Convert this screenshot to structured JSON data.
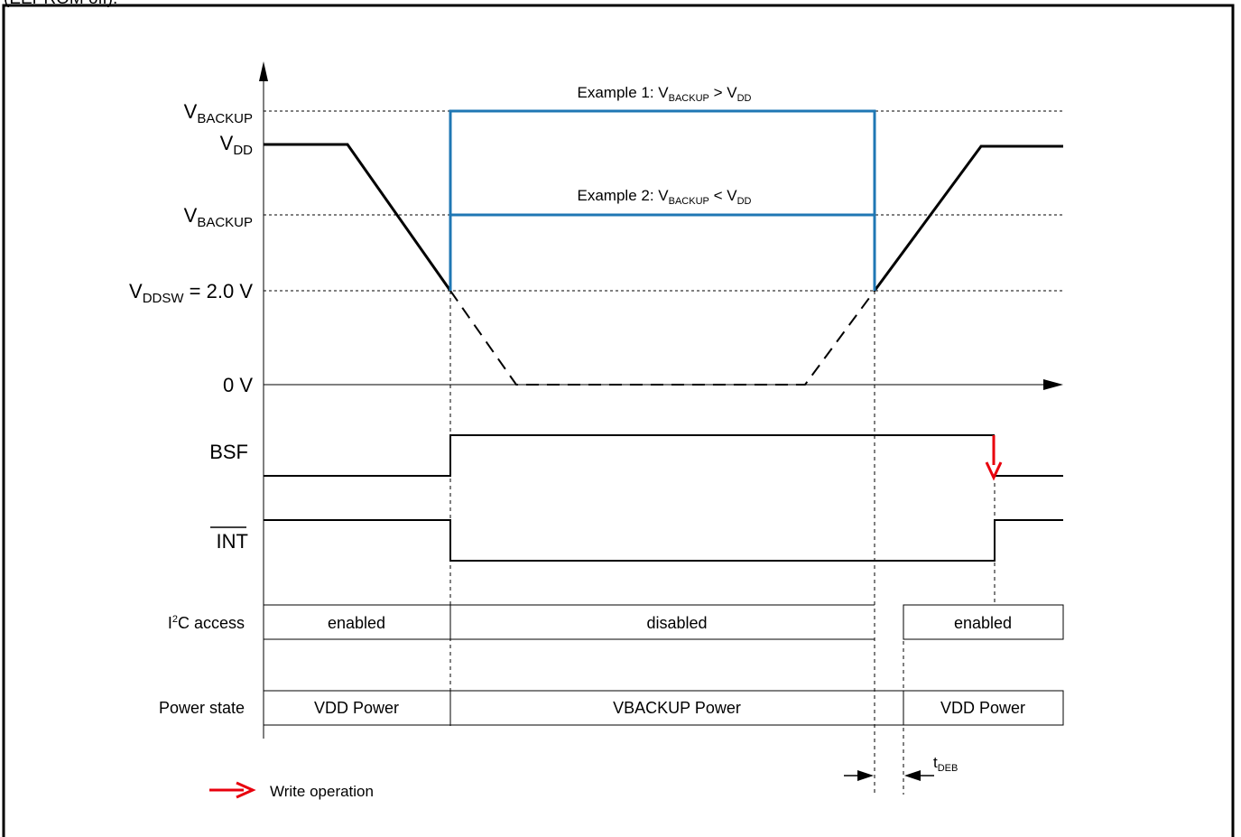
{
  "caption_fragment": "(EEPROM off).",
  "y_axis": {
    "vbackup_high": {
      "base": "V",
      "sub": "BACKUP"
    },
    "vdd": {
      "base": "V",
      "sub": "DD"
    },
    "vbackup_low": {
      "base": "V",
      "sub": "BACKUP"
    },
    "vddsw": {
      "base": "V",
      "sub": "DDSW",
      "suffix": " = 2.0 V"
    },
    "zero": "0 V"
  },
  "examples": {
    "ex1": {
      "prefix": "Example 1: V",
      "sub1": "BACKUP",
      "op": " > V",
      "sub2": "DD"
    },
    "ex2": {
      "prefix": "Example 2: V",
      "sub1": "BACKUP",
      "op": " < V",
      "sub2": "DD"
    }
  },
  "signals": {
    "bsf": "BSF",
    "int": "INT"
  },
  "i2c_row": {
    "label_pre": "I",
    "label_sup": "2",
    "label_post": "C access",
    "cells": [
      "enabled",
      "disabled",
      "enabled"
    ]
  },
  "power_row": {
    "label": "Power state",
    "cells": [
      "VDD Power",
      "VBACKUP Power",
      "VDD Power"
    ]
  },
  "timing": {
    "base": "t",
    "sub": "DEB"
  },
  "legend": {
    "write_operation": "Write operation"
  },
  "colors": {
    "vbackup_trace": "#1f77b4",
    "write_arrow": "#e8000d",
    "lines": "#000000"
  }
}
